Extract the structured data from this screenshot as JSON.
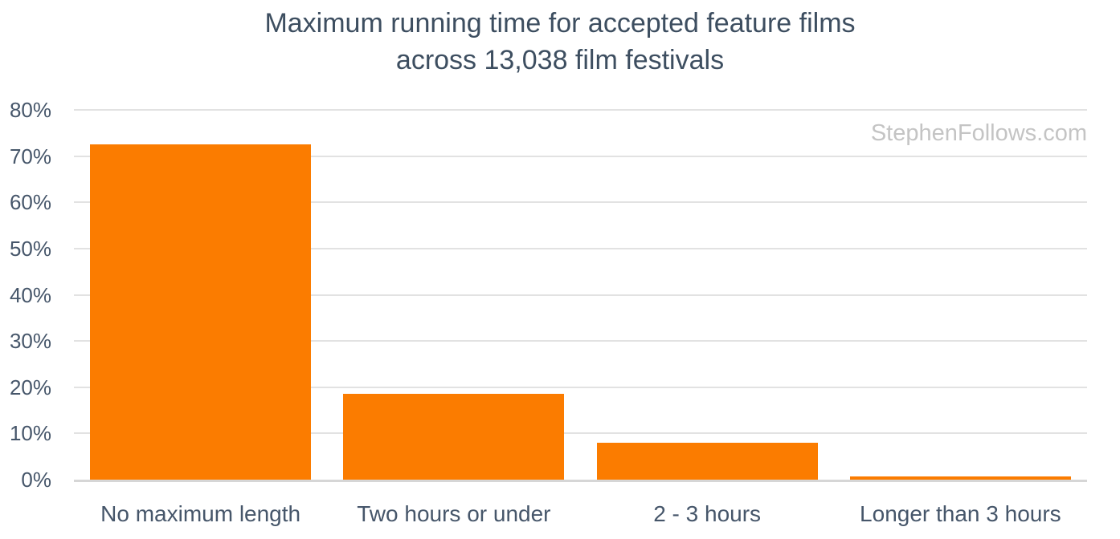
{
  "page": {
    "watermark": "StephenFollows.com"
  },
  "chart_data": {
    "type": "bar",
    "title": "Maximum running time for accepted feature films across 13,038 film festivals",
    "title_lines": [
      "Maximum running time for accepted feature films",
      "across 13,038 film festivals"
    ],
    "categories": [
      "No maximum length",
      "Two hours or under",
      "2 - 3 hours",
      "Longer than 3 hours"
    ],
    "values": [
      72.5,
      18.6,
      8.0,
      0.7
    ],
    "value_unit": "%",
    "xlabel": "",
    "ylabel": "",
    "ylim": [
      0,
      80
    ],
    "ytick_step": 10,
    "ytick_labels": [
      "0%",
      "10%",
      "20%",
      "30%",
      "40%",
      "50%",
      "60%",
      "70%",
      "80%"
    ],
    "grid": true,
    "legend_position": "none",
    "colors": {
      "bar": "#fb7c00",
      "title_text": "#3d4e60",
      "axis_text": "#46566a",
      "gridline": "#e2e2e2",
      "axis_line": "#d6d6d6",
      "watermark": "#c4c4c4",
      "background": "#ffffff"
    }
  }
}
